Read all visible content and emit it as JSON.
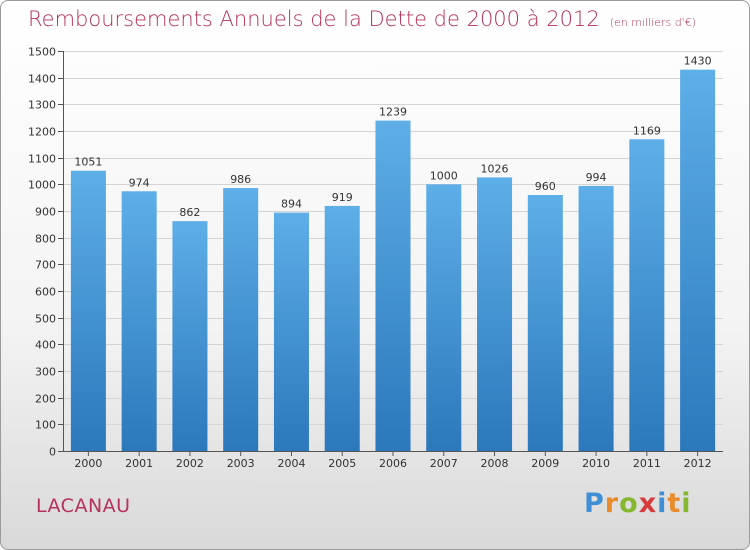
{
  "header": {
    "title": "Remboursements Annuels de la Dette de 2000 à 2012",
    "subtitle": "(en milliers d'€)"
  },
  "footer": {
    "town": "LACANAU",
    "brand_letters": [
      "P",
      "r",
      "o",
      "x",
      "i",
      "t",
      "i"
    ],
    "brand_colors": [
      "#3f8fd6",
      "#e98b2a",
      "#86b82f",
      "#d63a3a",
      "#3f8fd6",
      "#e98b2a",
      "#86b82f"
    ]
  },
  "colors": {
    "bar_top": "#5eaee8",
    "bar_bottom": "#2b78bb",
    "title": "#b5325a",
    "grid": "#d4d4d4"
  },
  "chart_data": {
    "type": "bar",
    "title": "Remboursements Annuels de la Dette de 2000 à 2012",
    "subtitle": "(en milliers d'€)",
    "xlabel": "",
    "ylabel": "",
    "categories": [
      "2000",
      "2001",
      "2002",
      "2003",
      "2004",
      "2005",
      "2006",
      "2007",
      "2008",
      "2009",
      "2010",
      "2011",
      "2012"
    ],
    "values": [
      1051,
      974,
      862,
      986,
      894,
      919,
      1239,
      1000,
      1026,
      960,
      994,
      1169,
      1430
    ],
    "ylim": [
      0,
      1500
    ],
    "yticks": [
      0,
      100,
      200,
      300,
      400,
      500,
      600,
      700,
      800,
      900,
      1000,
      1100,
      1200,
      1300,
      1400,
      1500
    ],
    "grid": true,
    "data_labels": true
  }
}
